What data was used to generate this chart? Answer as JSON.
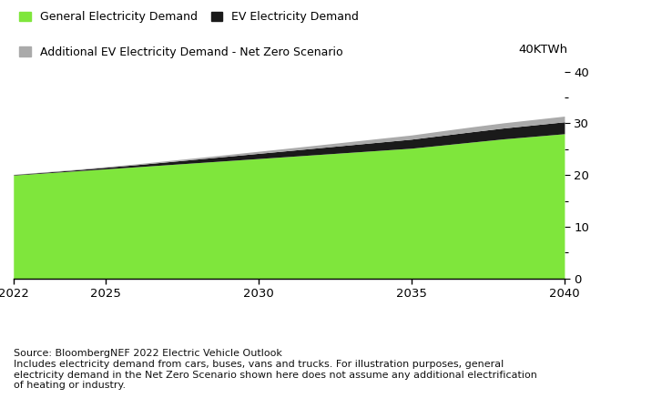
{
  "years": [
    2022,
    2023,
    2024,
    2025,
    2026,
    2027,
    2028,
    2029,
    2030,
    2031,
    2032,
    2033,
    2034,
    2035,
    2036,
    2037,
    2038,
    2039,
    2040
  ],
  "general_demand": [
    20.0,
    20.4,
    20.8,
    21.2,
    21.6,
    22.0,
    22.4,
    22.8,
    23.2,
    23.6,
    24.0,
    24.4,
    24.8,
    25.2,
    25.8,
    26.4,
    27.0,
    27.5,
    28.0
  ],
  "ev_demand": [
    0.1,
    0.15,
    0.2,
    0.3,
    0.4,
    0.55,
    0.7,
    0.85,
    1.0,
    1.15,
    1.3,
    1.45,
    1.6,
    1.75,
    1.88,
    2.0,
    2.1,
    2.2,
    2.3
  ],
  "net_zero_extra": [
    0.05,
    0.07,
    0.1,
    0.13,
    0.17,
    0.22,
    0.27,
    0.33,
    0.4,
    0.47,
    0.55,
    0.63,
    0.72,
    0.8,
    0.88,
    0.95,
    1.0,
    1.05,
    1.1
  ],
  "color_general": "#7FE63C",
  "color_ev": "#1a1a1a",
  "color_netzero": "#aaaaaa",
  "ylim": [
    0,
    40
  ],
  "yticks": [
    0,
    10,
    20,
    30,
    40
  ],
  "yticks_minor": [
    5,
    15,
    25,
    35
  ],
  "xlim_start": 2022,
  "xlim_end": 2040,
  "xticks": [
    2022,
    2025,
    2030,
    2035,
    2040
  ],
  "ylabel_top": "40KTWh",
  "legend_general": "General Electricity Demand",
  "legend_ev": "EV Electricity Demand",
  "legend_netzero": "Additional EV Electricity Demand - Net Zero Scenario",
  "source_text": "Source: BloombergNEF 2022 Electric Vehicle Outlook\nIncludes electricity demand from cars, buses, vans and trucks. For illustration purposes, general\nelectricity demand in the Net Zero Scenario shown here does not assume any additional electrification\nof heating or industry.",
  "background_color": "#ffffff",
  "font_size_legend": 9.0,
  "font_size_axis": 9.5,
  "font_size_source": 8.0,
  "font_size_ylabel": 9.5
}
